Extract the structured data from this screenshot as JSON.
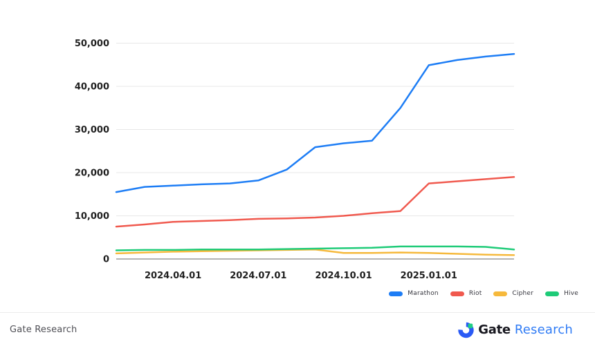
{
  "chart_data": {
    "type": "line",
    "title": "",
    "xlabel": "",
    "ylabel": "",
    "ylim": [
      0,
      50000
    ],
    "grid": "horizontal",
    "legend_position": "bottom-right",
    "x": [
      "2024.02.01",
      "2024.03.01",
      "2024.04.01",
      "2024.05.01",
      "2024.06.01",
      "2024.07.01",
      "2024.08.01",
      "2024.09.01",
      "2024.10.01",
      "2024.11.01",
      "2024.12.01",
      "2025.01.01",
      "2025.02.01",
      "2025.03.01",
      "2025.04.01"
    ],
    "x_tick_labels": [
      {
        "label": "2024.04.01",
        "index": 2
      },
      {
        "label": "2024.07.01",
        "index": 5
      },
      {
        "label": "2024.10.01",
        "index": 8
      },
      {
        "label": "2025.01.01",
        "index": 11
      }
    ],
    "yticks": [
      {
        "value": 0,
        "label": "0"
      },
      {
        "value": 10000,
        "label": "10,000"
      },
      {
        "value": 20000,
        "label": "20,000"
      },
      {
        "value": 30000,
        "label": "30,000"
      },
      {
        "value": 40000,
        "label": "40,000"
      },
      {
        "value": 50000,
        "label": "50,000"
      }
    ],
    "series": [
      {
        "name": "Marathon",
        "color": "#1d7df5",
        "values": [
          15500,
          16700,
          17000,
          17300,
          17500,
          18200,
          20700,
          25900,
          26800,
          27400,
          35000,
          44900,
          46100,
          46900,
          47500
        ]
      },
      {
        "name": "Riot",
        "color": "#f0594e",
        "values": [
          7500,
          8000,
          8600,
          8800,
          9000,
          9300,
          9400,
          9600,
          10000,
          10600,
          11100,
          17500,
          18000,
          18500,
          19000
        ]
      },
      {
        "name": "Cipher",
        "color": "#f6b93c",
        "values": [
          1300,
          1500,
          1700,
          1800,
          1900,
          2000,
          2100,
          2200,
          1400,
          1400,
          1500,
          1400,
          1200,
          1000,
          900
        ]
      },
      {
        "name": "Hive",
        "color": "#1ecb78",
        "values": [
          2000,
          2100,
          2100,
          2200,
          2200,
          2200,
          2300,
          2400,
          2500,
          2600,
          2900,
          2900,
          2900,
          2800,
          2200
        ]
      }
    ],
    "colors": {
      "axis_text": "#1f1f1f",
      "gridline": "#e7e7e7",
      "zero_line": "#9a9a9a"
    }
  },
  "footer": {
    "left_text": "Gate Research",
    "logo": {
      "name": "Gate",
      "suffix": "Research",
      "blue": "#2a5af5",
      "green": "#1fce84"
    }
  }
}
